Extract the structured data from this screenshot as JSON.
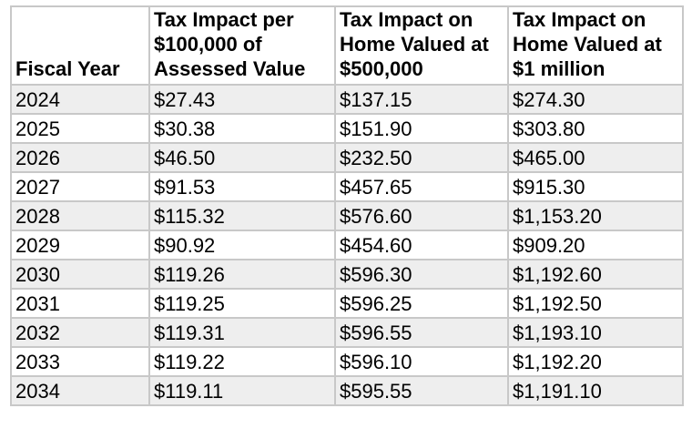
{
  "table": {
    "headers": [
      "Fiscal Year",
      "Tax Impact per $100,000 of Assessed Value",
      "Tax Impact on Home Valued at $500,000",
      "Tax Impact on Home Valued at $1 million"
    ],
    "rows": [
      [
        "2024",
        "$27.43",
        "$137.15",
        "$274.30"
      ],
      [
        "2025",
        "$30.38",
        "$151.90",
        "$303.80"
      ],
      [
        "2026",
        "$46.50",
        "$232.50",
        "$465.00"
      ],
      [
        "2027",
        "$91.53",
        "$457.65",
        "$915.30"
      ],
      [
        "2028",
        "$115.32",
        "$576.60",
        "$1,153.20"
      ],
      [
        "2029",
        "$90.92",
        "$454.60",
        "$909.20"
      ],
      [
        "2030",
        "$119.26",
        "$596.30",
        "$1,192.60"
      ],
      [
        "2031",
        "$119.25",
        "$596.25",
        "$1,192.50"
      ],
      [
        "2032",
        "$119.31",
        "$596.55",
        "$1,193.10"
      ],
      [
        "2033",
        "$119.22",
        "$596.10",
        "$1,192.20"
      ],
      [
        "2034",
        "$119.11",
        "$595.55",
        "$1,191.10"
      ]
    ]
  }
}
